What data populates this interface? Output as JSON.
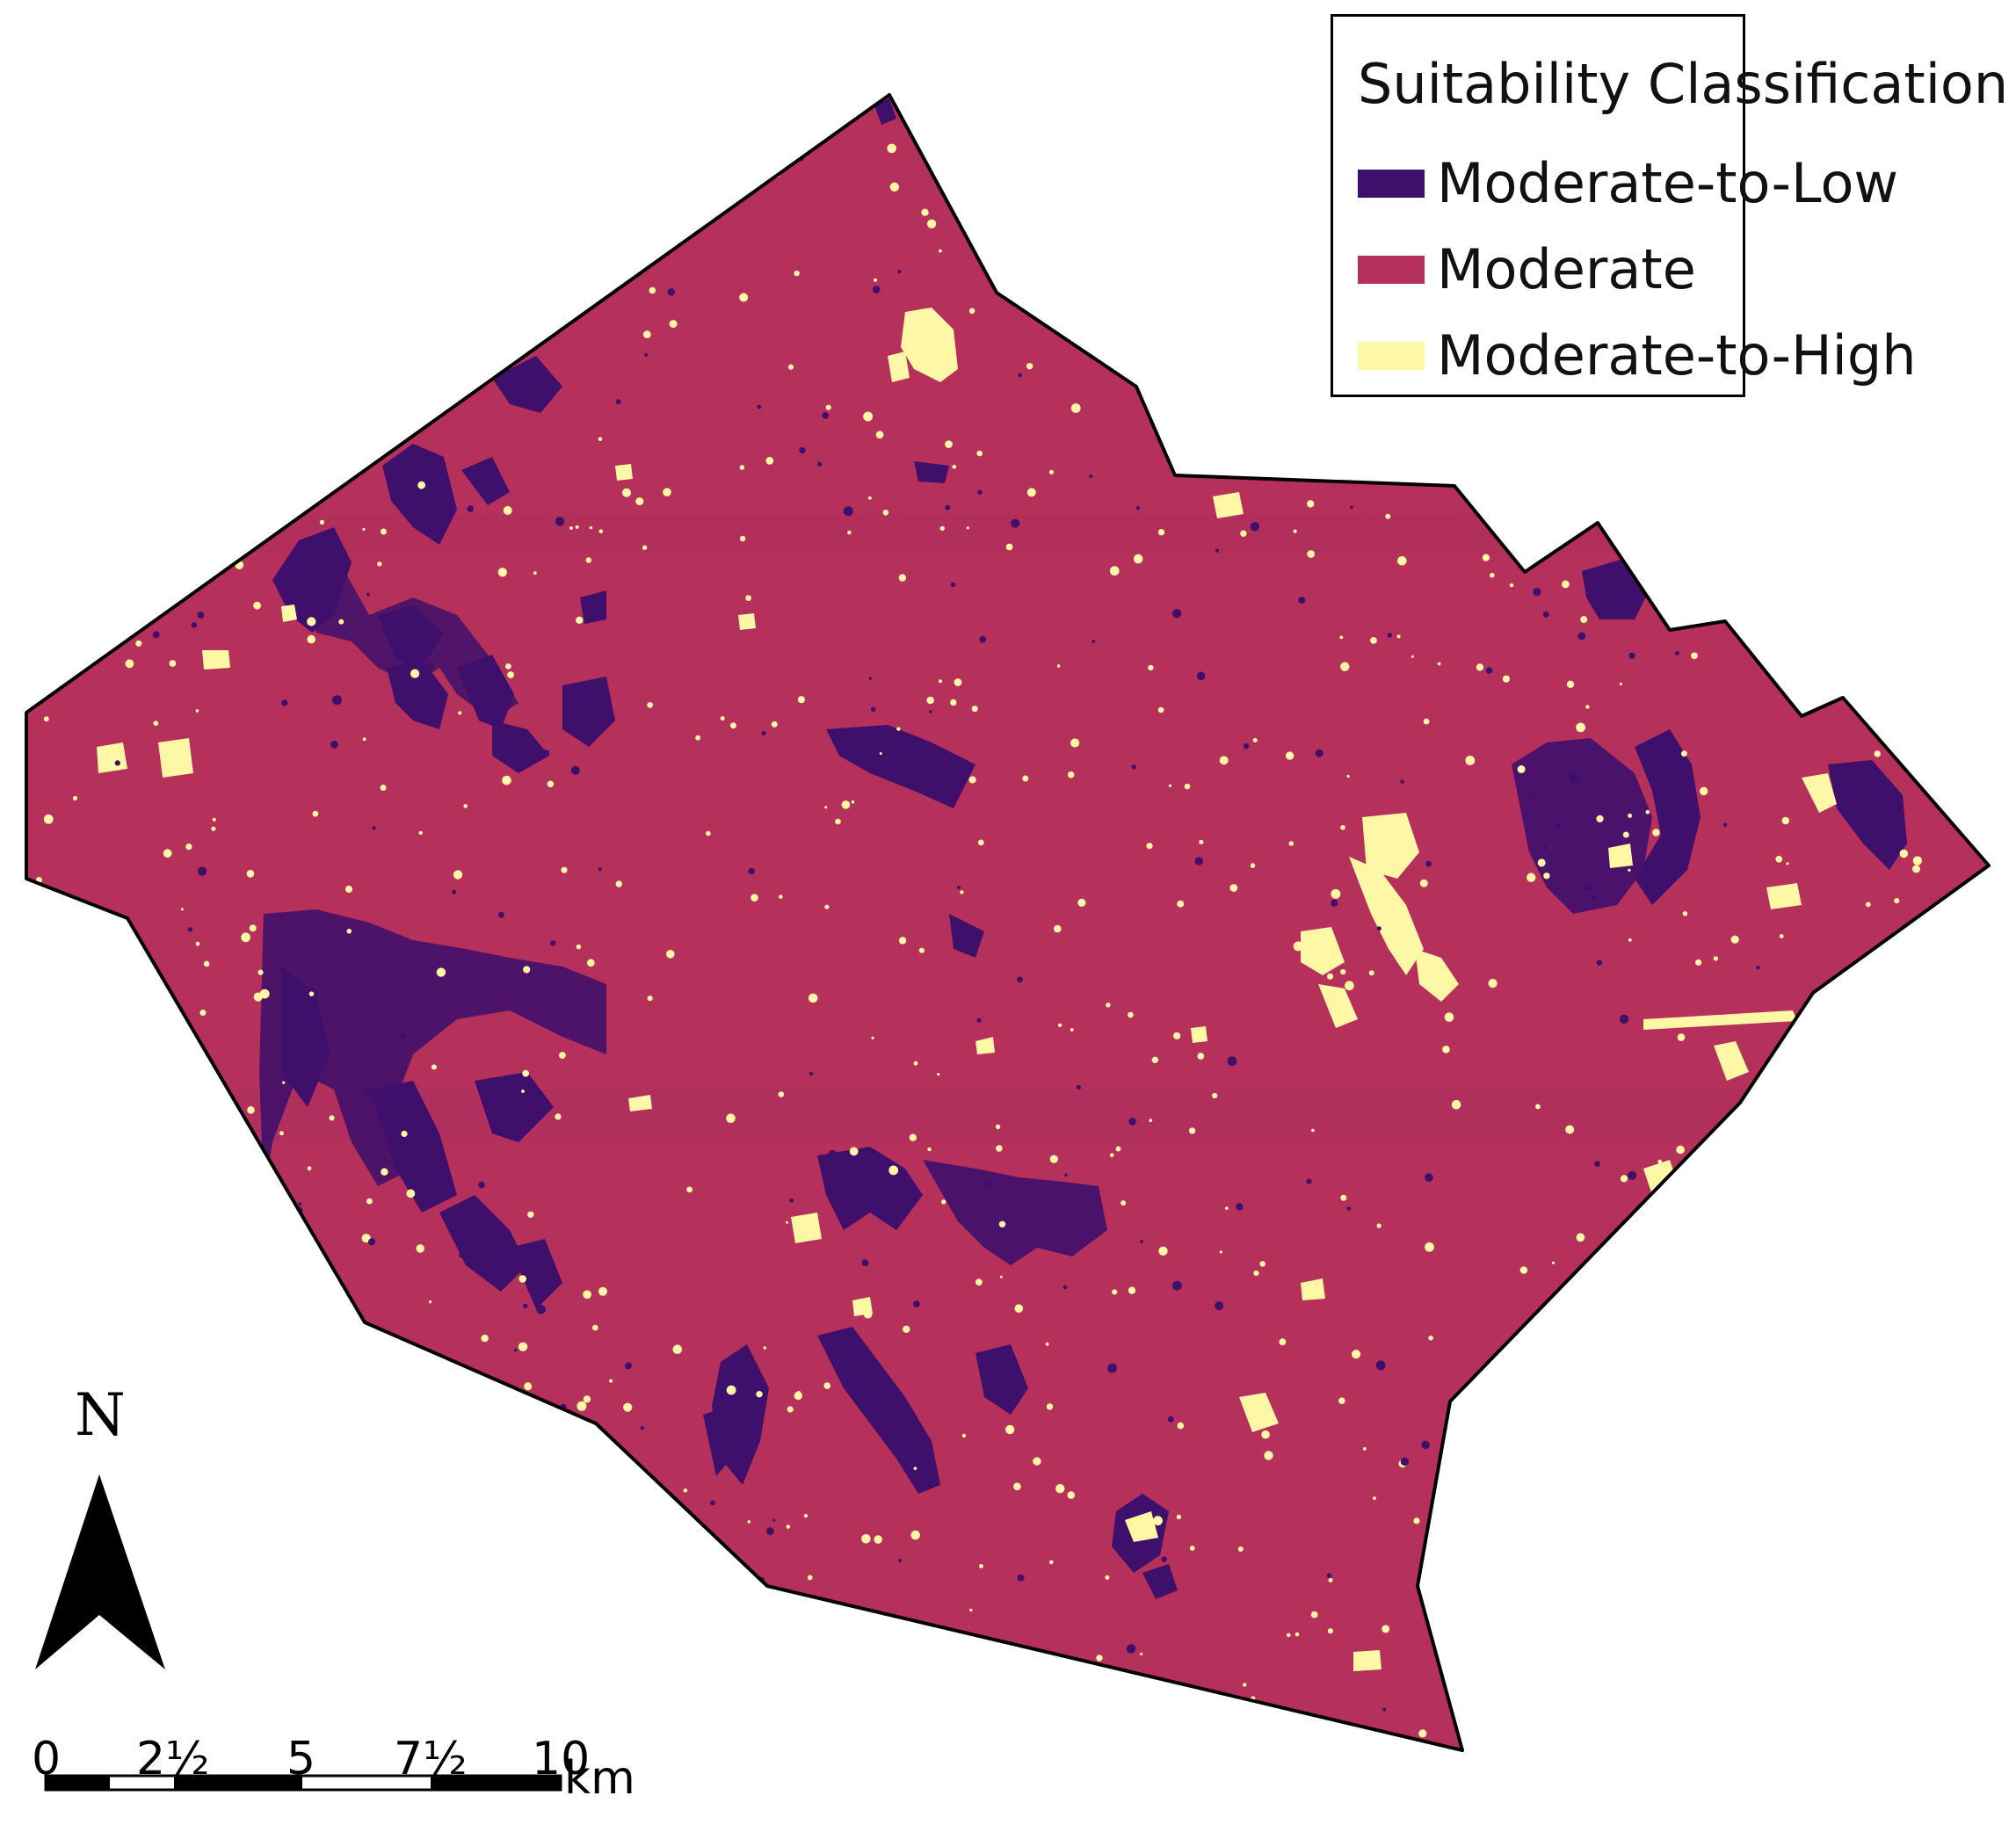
{
  "legend": {
    "title": "Suitability Classification",
    "items": [
      {
        "label": "Moderate-to-Low",
        "color": "#3e0f6b"
      },
      {
        "label": "Moderate",
        "color": "#b5305a"
      },
      {
        "label": "Moderate-to-High",
        "color": "#fdf7a6"
      }
    ]
  },
  "north_arrow": {
    "label": "N"
  },
  "scale_bar": {
    "ticks": [
      "0",
      "2½",
      "5",
      "7½",
      "10"
    ],
    "unit": "km"
  }
}
